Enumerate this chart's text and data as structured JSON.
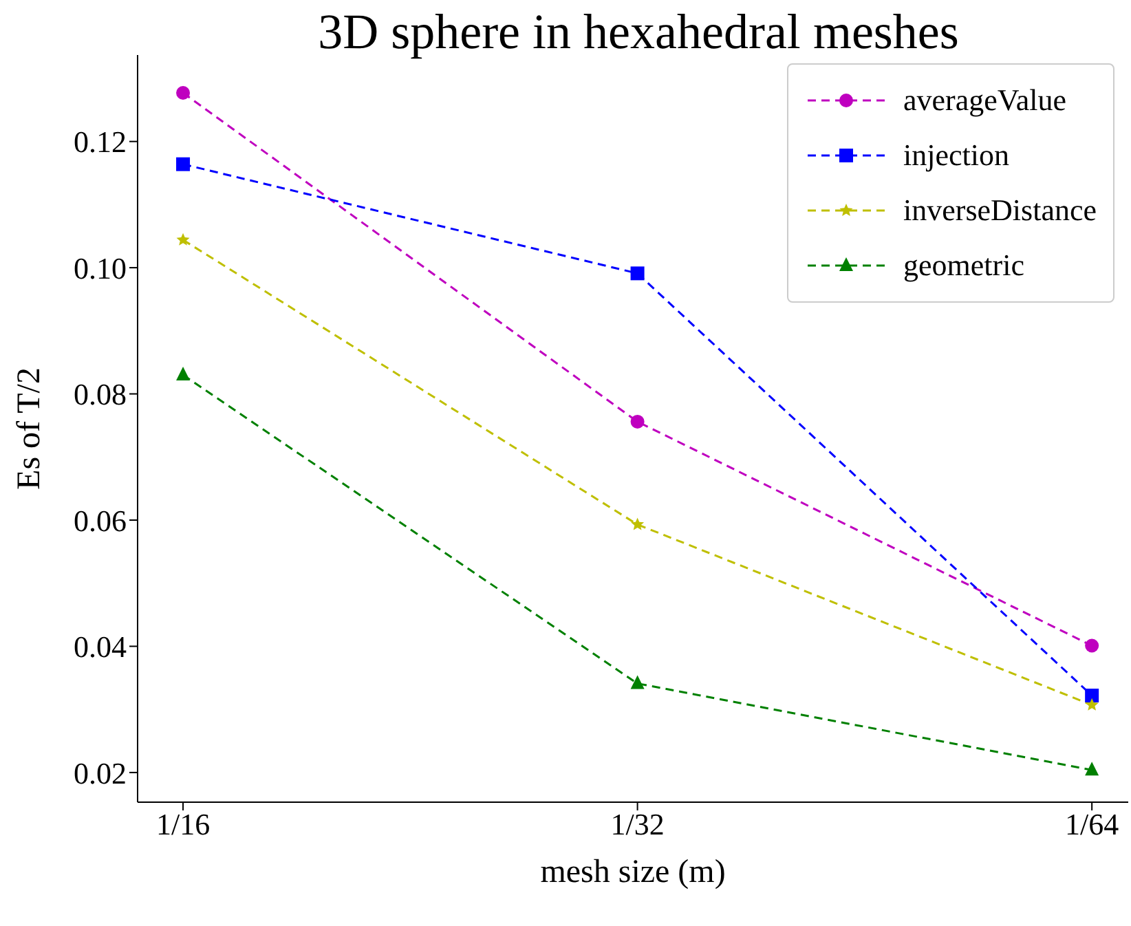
{
  "chart_data": {
    "type": "line",
    "title": "3D sphere in hexahedral meshes",
    "xlabel": "mesh size (m)",
    "ylabel": "Es of T/2",
    "categories": [
      "1/16",
      "1/32",
      "1/64"
    ],
    "series": [
      {
        "name": "averageValue",
        "color": "#bf00bf",
        "marker": "circle",
        "values": [
          0.1277,
          0.0756,
          0.0401
        ]
      },
      {
        "name": "injection",
        "color": "#0000ff",
        "marker": "square",
        "values": [
          0.1164,
          0.0991,
          0.0322
        ]
      },
      {
        "name": "inverseDistance",
        "color": "#bfbf00",
        "marker": "star",
        "values": [
          0.1044,
          0.0593,
          0.0307
        ]
      },
      {
        "name": "geometric",
        "color": "#008000",
        "marker": "triangle",
        "values": [
          0.083,
          0.0341,
          0.0204
        ]
      }
    ],
    "ylim": [
      0.0153,
      0.1337
    ],
    "yticks": [
      {
        "value": 0.02,
        "label": "0.02"
      },
      {
        "value": 0.04,
        "label": "0.04"
      },
      {
        "value": 0.06,
        "label": "0.06"
      },
      {
        "value": 0.08,
        "label": "0.08"
      },
      {
        "value": 0.1,
        "label": "0.10"
      },
      {
        "value": 0.12,
        "label": "0.12"
      }
    ],
    "grid": false,
    "legend": "top right",
    "line_style": "dashed"
  }
}
